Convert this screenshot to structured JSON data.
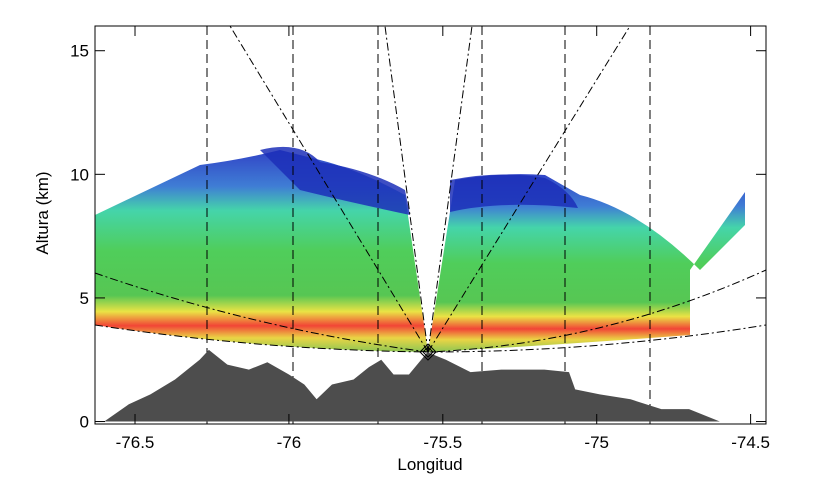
{
  "chart_data": {
    "type": "area",
    "x_label": "Longitud",
    "y_label": "Altura (km)",
    "x": [
      -76.6,
      -76.52,
      -76.45,
      -76.37,
      -76.29,
      -76.26,
      -76.2,
      -76.13,
      -76.07,
      -76.0,
      -75.95,
      -75.91,
      -75.86,
      -75.79,
      -75.74,
      -75.7,
      -75.66,
      -75.61,
      -75.55,
      -75.49,
      -75.41,
      -75.31,
      -75.25,
      -75.17,
      -75.09,
      -75.07,
      -74.99,
      -74.89,
      -74.79,
      -74.7,
      -74.6,
      -74.47
    ],
    "values": [
      0.0,
      0.7,
      1.1,
      1.7,
      2.5,
      2.9,
      2.3,
      2.1,
      2.4,
      1.9,
      1.5,
      0.9,
      1.5,
      1.7,
      2.2,
      2.5,
      1.9,
      1.9,
      2.8,
      2.5,
      2.0,
      2.1,
      2.1,
      2.1,
      2.0,
      1.3,
      1.1,
      0.9,
      0.5,
      0.5,
      0.0,
      0.0
    ],
    "color": "#4d4d4d",
    "xlim": [
      -76.63,
      -74.45
    ],
    "xticks": [
      -76.5,
      -76.0,
      -75.5,
      -75.0,
      -74.5
    ],
    "ylim": [
      -0.1,
      16
    ],
    "yticks": [
      0,
      5,
      10,
      15
    ]
  }
}
